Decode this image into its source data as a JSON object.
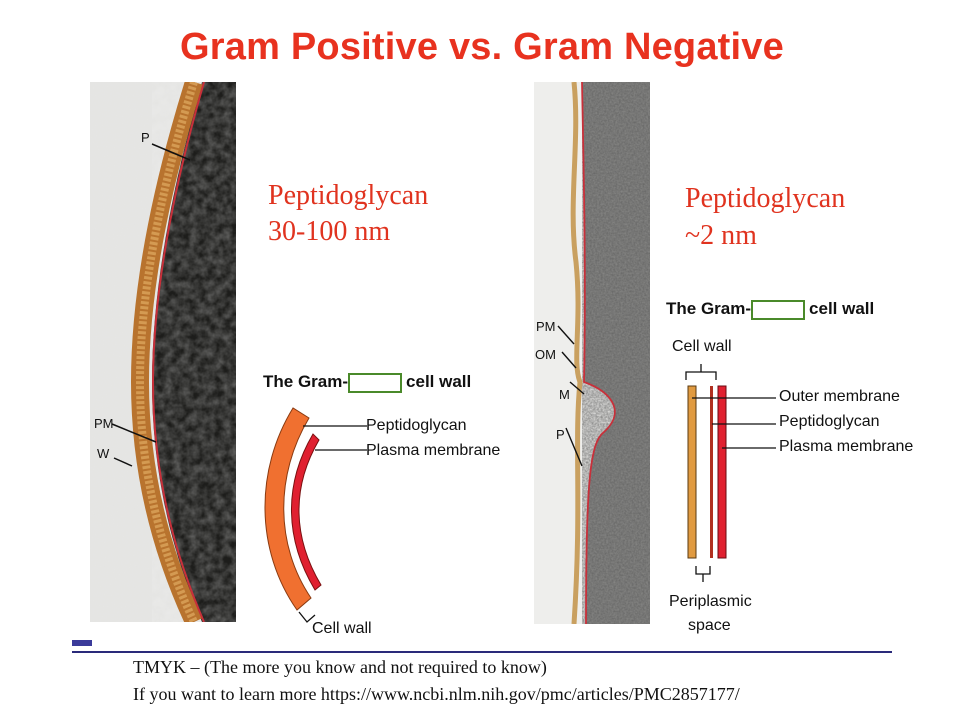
{
  "title": "Gram Positive vs. Gram Negative",
  "left": {
    "peptidoglycan_label": "Peptidoglycan",
    "thickness": "30-100 nm",
    "micro_labels": {
      "p": "P",
      "pm": "PM",
      "w": "W"
    },
    "diagram": {
      "heading_prefix": "The Gram-",
      "heading_suffix": "cell wall",
      "labels": [
        "Peptidoglycan",
        "Plasma membrane"
      ],
      "bottom_label": "Cell wall"
    }
  },
  "right": {
    "peptidoglycan_label": "Peptidoglycan",
    "thickness": "~2 nm",
    "micro_labels": {
      "pm": "PM",
      "om": "OM",
      "m": "M",
      "p": "P"
    },
    "diagram": {
      "heading_prefix": "The Gram-",
      "heading_suffix": "cell wall",
      "top_label": "Cell wall",
      "labels": [
        "Outer membrane",
        "Peptidoglycan",
        "Plasma membrane"
      ],
      "bottom_label_1": "Periplasmic",
      "bottom_label_2": "space"
    }
  },
  "footer": {
    "line1": "TMYK – (The more you know and not required to know)",
    "line2": "If you want to learn more https://www.ncbi.nlm.nih.gov/pmc/articles/PMC2857177/"
  },
  "colors": {
    "title": "#e8321f",
    "peptidoglycan_orange": "#f07030",
    "membrane_red": "#e02030",
    "blank_border": "#4a8a2a"
  }
}
